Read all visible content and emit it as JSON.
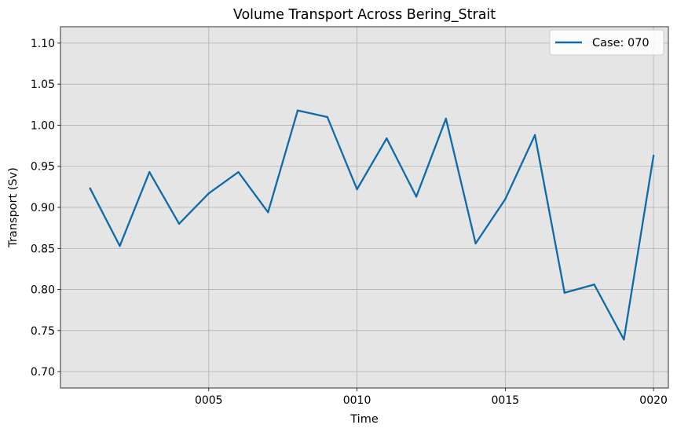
{
  "chart_data": {
    "type": "line",
    "title": "Volume Transport Across Bering_Strait",
    "xlabel": "Time",
    "ylabel": "Transport (Sv)",
    "x": [
      "0001",
      "0002",
      "0003",
      "0004",
      "0005",
      "0006",
      "0007",
      "0008",
      "0009",
      "0010",
      "0011",
      "0012",
      "0013",
      "0014",
      "0015",
      "0016",
      "0017",
      "0018",
      "0019",
      "0020"
    ],
    "xticks": [
      "0005",
      "0010",
      "0015",
      "0020"
    ],
    "series": [
      {
        "name": "Case: 070",
        "color": "#0e6aa8",
        "values": [
          0.923,
          0.853,
          0.943,
          0.88,
          0.917,
          0.943,
          0.894,
          1.018,
          1.01,
          0.922,
          0.984,
          0.913,
          1.008,
          0.856,
          0.91,
          0.988,
          0.796,
          0.806,
          0.739,
          0.963
        ]
      }
    ],
    "ylim": [
      0.68,
      1.12
    ],
    "yticks": [
      "0.70",
      "0.75",
      "0.80",
      "0.85",
      "0.90",
      "0.95",
      "1.00",
      "1.05",
      "1.10"
    ],
    "xlim": [
      0.0,
      20.5
    ],
    "grid": true,
    "background": "#e5e5e5",
    "legend": "top-right"
  }
}
